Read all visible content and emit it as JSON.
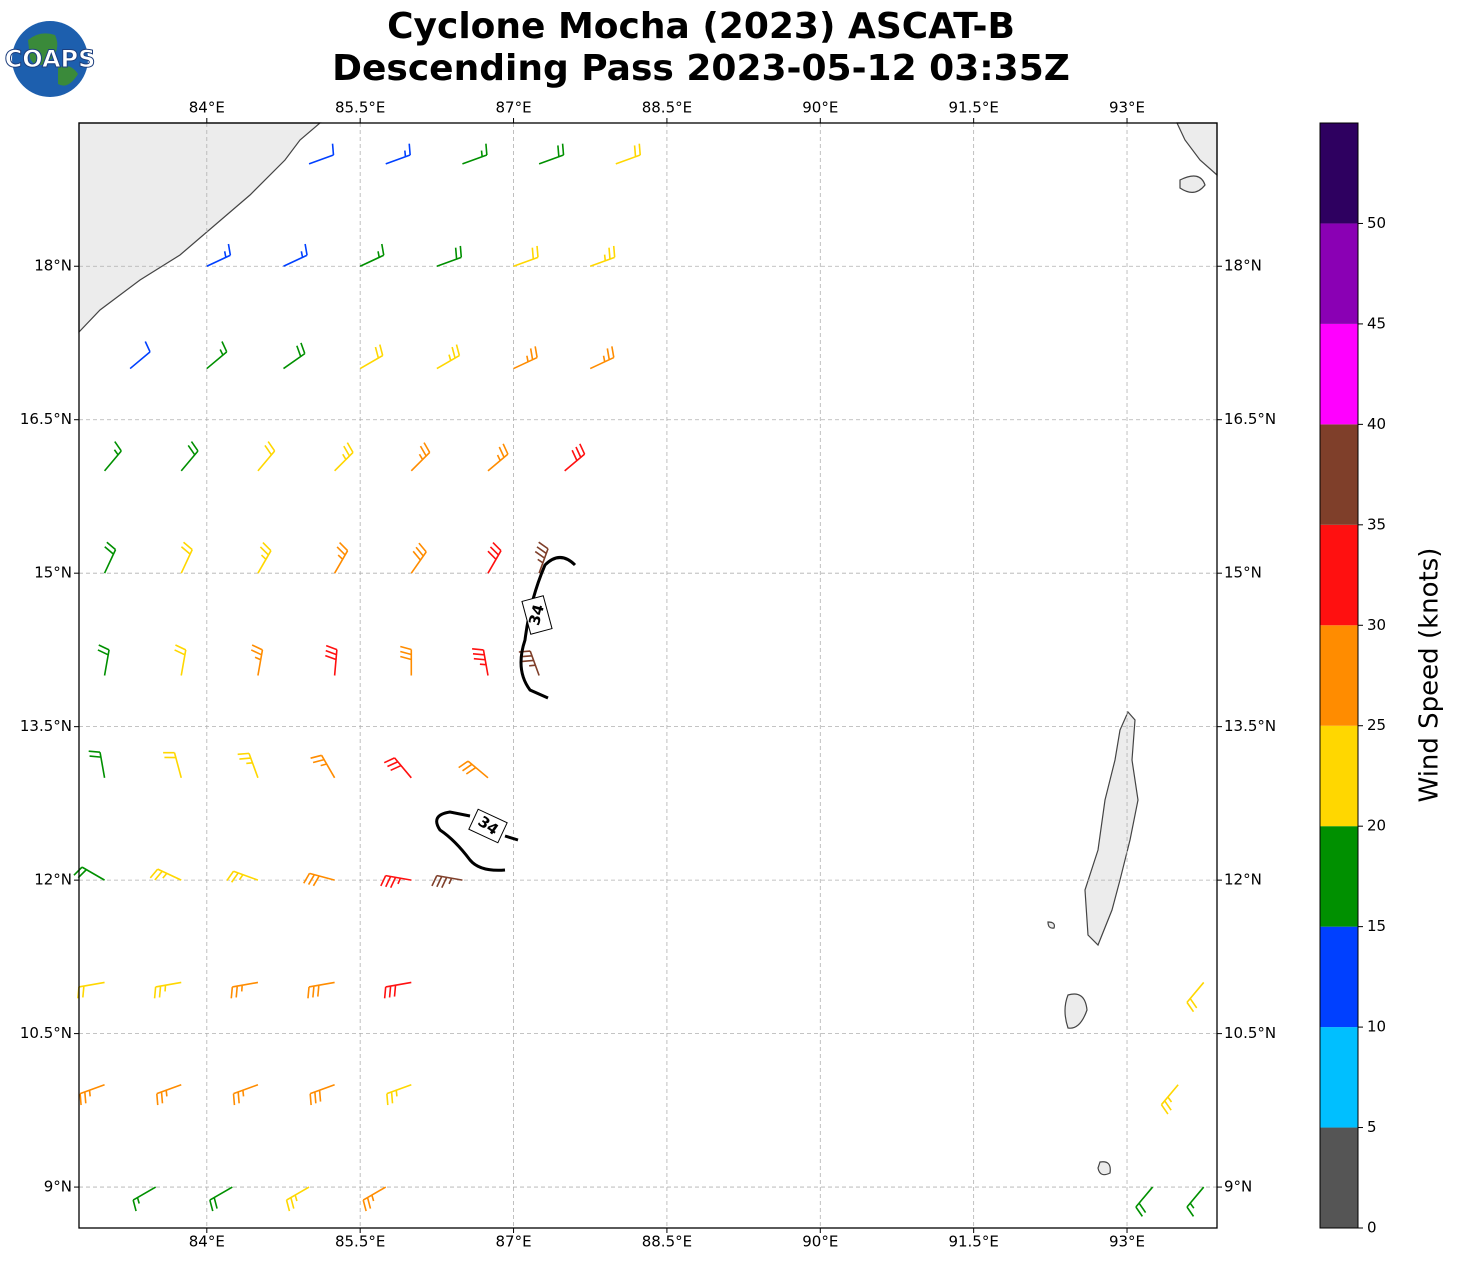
{
  "logo": {
    "text": "COAPS"
  },
  "chart_data": {
    "type": "barbs",
    "title": "Cyclone Mocha (2023) ASCAT-B",
    "subtitle": "Descending Pass 2023-05-12 03:35Z",
    "xlim": [
      82.75,
      93.88
    ],
    "ylim": [
      8.6,
      19.4
    ],
    "xticks": [
      {
        "value": 84,
        "label": "84°E"
      },
      {
        "value": 85.5,
        "label": "85.5°E"
      },
      {
        "value": 87,
        "label": "87°E"
      },
      {
        "value": 88.5,
        "label": "88.5°E"
      },
      {
        "value": 90,
        "label": "90°E"
      },
      {
        "value": 91.5,
        "label": "91.5°E"
      },
      {
        "value": 93,
        "label": "93°E"
      }
    ],
    "yticks": [
      {
        "value": 9,
        "label": "9°N"
      },
      {
        "value": 10.5,
        "label": "10.5°N"
      },
      {
        "value": 12,
        "label": "12°N"
      },
      {
        "value": 13.5,
        "label": "13.5°N"
      },
      {
        "value": 15,
        "label": "15°N"
      },
      {
        "value": 16.5,
        "label": "16.5°N"
      },
      {
        "value": 18,
        "label": "18°N"
      }
    ],
    "grid": true,
    "contours": [
      {
        "level": 34
      },
      {
        "level": 34
      }
    ],
    "colorbar": {
      "label": "Wind Speed (knots)",
      "bounds": [
        0,
        5,
        10,
        15,
        20,
        25,
        30,
        35,
        40,
        45,
        50,
        55
      ],
      "colors": [
        "#555555",
        "#00bfff",
        "#0040ff",
        "#009000",
        "#ffd700",
        "#ff8c00",
        "#ff1010",
        "#7f3f2a",
        "#ff00ff",
        "#8a00b4",
        "#2e0060"
      ],
      "ticks": [
        0,
        5,
        10,
        15,
        20,
        25,
        30,
        35,
        40,
        45,
        50
      ]
    },
    "barbs": {
      "lon": [
        85.0,
        85.75,
        86.5,
        87.25,
        88.0,
        84.0,
        84.75,
        85.5,
        86.25,
        87.0,
        87.75,
        83.25,
        84.0,
        84.75,
        85.5,
        86.25,
        87.0,
        87.75,
        83.0,
        83.75,
        84.5,
        85.25,
        86.0,
        86.75,
        87.5,
        83.0,
        83.75,
        84.5,
        85.25,
        86.0,
        86.75,
        87.25,
        83.0,
        83.75,
        84.5,
        85.25,
        86.0,
        86.75,
        87.25,
        83.0,
        83.75,
        84.5,
        85.25,
        86.0,
        86.75,
        83.0,
        83.75,
        84.5,
        85.25,
        86.0,
        86.5,
        83.0,
        83.75,
        84.5,
        85.25,
        86.0,
        83.0,
        83.75,
        84.5,
        85.25,
        86.0,
        83.5,
        84.25,
        85.0,
        85.75,
        93.25,
        93.75,
        93.5,
        93.75
      ],
      "lat": [
        19,
        19,
        19,
        19,
        19,
        18,
        18,
        18,
        18,
        18,
        18,
        17,
        17,
        17,
        17,
        17,
        17,
        17,
        16,
        16,
        16,
        16,
        16,
        16,
        16,
        15,
        15,
        15,
        15,
        15,
        15,
        15,
        14,
        14,
        14,
        14,
        14,
        14,
        14,
        13,
        13,
        13,
        13,
        13,
        13,
        12,
        12,
        12,
        12,
        12,
        12,
        11,
        11,
        11,
        11,
        11,
        10,
        10,
        10,
        10,
        10,
        9,
        9,
        9,
        9,
        9,
        9,
        10,
        11
      ],
      "speed": [
        12,
        14,
        17,
        19,
        22,
        13,
        14,
        17,
        19,
        22,
        23,
        12,
        16,
        19,
        22,
        23,
        26,
        26,
        16,
        18,
        21,
        23,
        27,
        27,
        31,
        18,
        22,
        24,
        27,
        28,
        32,
        37,
        18,
        22,
        26,
        31,
        29,
        33,
        37,
        18,
        22,
        24,
        27,
        32,
        29,
        19,
        23,
        24,
        28,
        33,
        37,
        22,
        24,
        26,
        28,
        32,
        26,
        27,
        27,
        28,
        24,
        17,
        19,
        23,
        27,
        19,
        17,
        23,
        21
      ],
      "dir": [
        70,
        70,
        70,
        70,
        70,
        65,
        65,
        65,
        70,
        70,
        70,
        50,
        50,
        55,
        60,
        60,
        65,
        65,
        40,
        40,
        40,
        45,
        45,
        50,
        50,
        25,
        25,
        30,
        30,
        35,
        30,
        20,
        10,
        10,
        10,
        5,
        0,
        350,
        340,
        350,
        345,
        340,
        330,
        320,
        310,
        300,
        295,
        290,
        285,
        280,
        280,
        260,
        260,
        260,
        260,
        260,
        250,
        250,
        250,
        250,
        250,
        240,
        240,
        240,
        240,
        220,
        220,
        220,
        220
      ]
    }
  }
}
